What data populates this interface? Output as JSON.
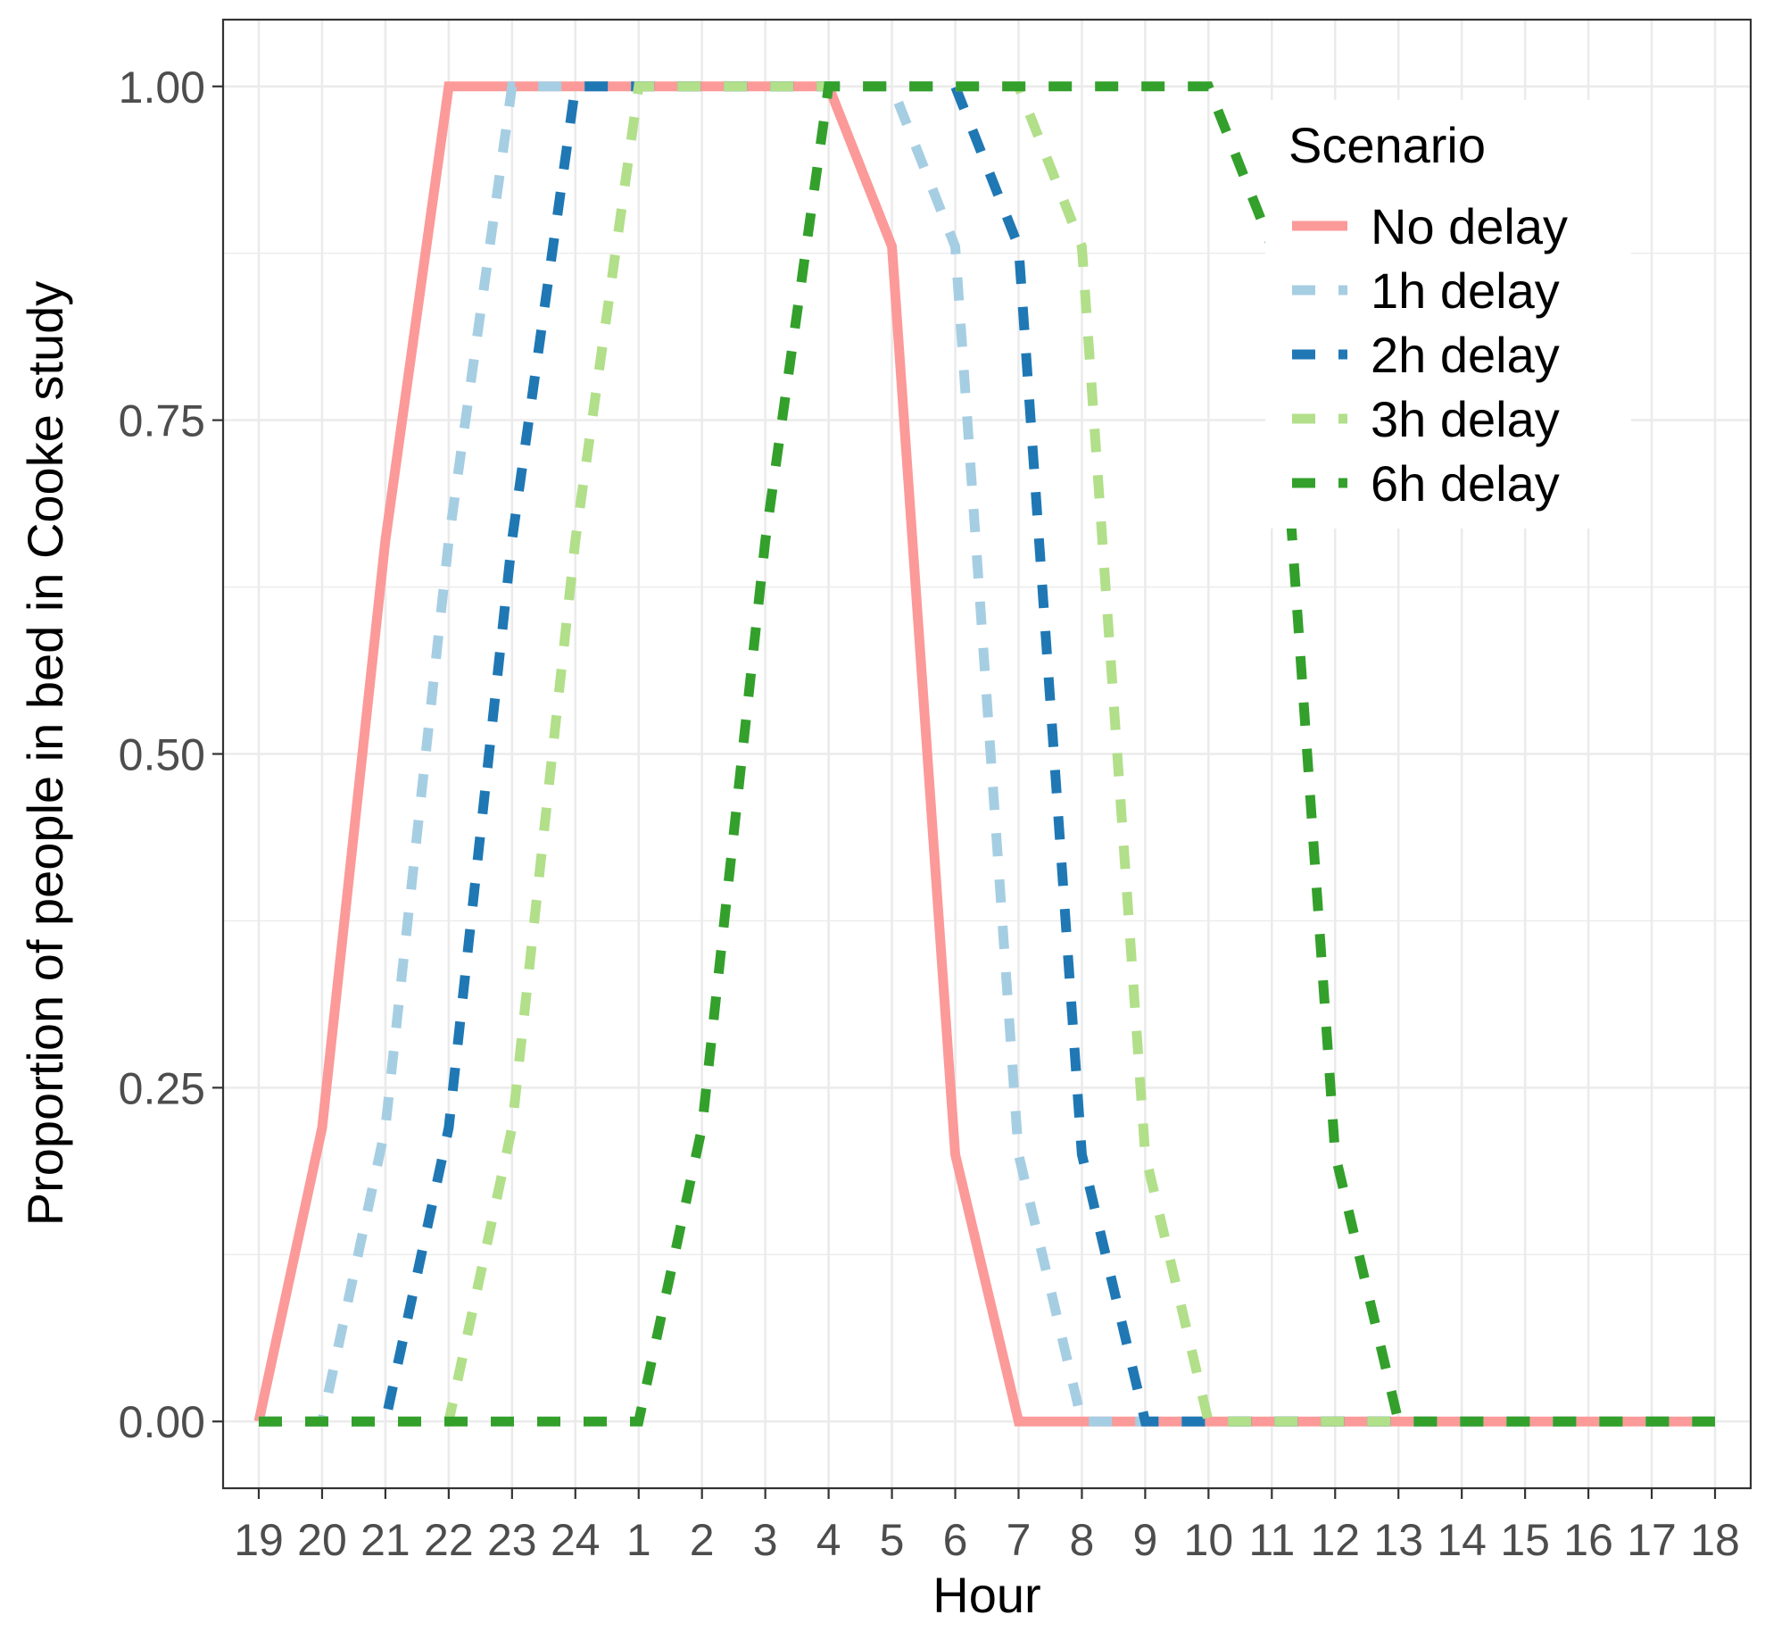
{
  "chart_data": {
    "type": "line",
    "xlabel": "Hour",
    "ylabel": "Proportion of people in bed in Cooke study",
    "categories": [
      "19",
      "20",
      "21",
      "22",
      "23",
      "24",
      "1",
      "2",
      "3",
      "4",
      "5",
      "6",
      "7",
      "8",
      "9",
      "10",
      "11",
      "12",
      "13",
      "14",
      "15",
      "16",
      "17",
      "18"
    ],
    "yticks": [
      "0.00",
      "0.25",
      "0.50",
      "0.75",
      "1.00"
    ],
    "ylim": [
      -0.05,
      1.05
    ],
    "grid": true,
    "legend": {
      "title": "Scenario",
      "placement": "top-right",
      "entries": [
        "No delay",
        "1h delay",
        "2h delay",
        "3h delay",
        "6h delay"
      ]
    },
    "series": [
      {
        "name": "No delay",
        "color": "#fb9a99",
        "dashed": false,
        "values": [
          0,
          0.22,
          0.66,
          1,
          1,
          1,
          1,
          1,
          1,
          1,
          0.88,
          0.2,
          0,
          0,
          0,
          0,
          0,
          0,
          0,
          0,
          0,
          0,
          0,
          0
        ]
      },
      {
        "name": "1h delay",
        "color": "#a6cee3",
        "dashed": true,
        "values": [
          0,
          0,
          0.22,
          0.66,
          1,
          1,
          1,
          1,
          1,
          1,
          1,
          0.88,
          0.2,
          0,
          0,
          0,
          0,
          0,
          0,
          0,
          0,
          0,
          0,
          0
        ]
      },
      {
        "name": "2h delay",
        "color": "#1f78b4",
        "dashed": true,
        "values": [
          0,
          0,
          0,
          0.22,
          0.66,
          1,
          1,
          1,
          1,
          1,
          1,
          1,
          0.88,
          0.2,
          0,
          0,
          0,
          0,
          0,
          0,
          0,
          0,
          0,
          0
        ]
      },
      {
        "name": "3h delay",
        "color": "#b2df8a",
        "dashed": true,
        "values": [
          0,
          0,
          0,
          0,
          0.22,
          0.66,
          1,
          1,
          1,
          1,
          1,
          1,
          1,
          0.88,
          0.2,
          0,
          0,
          0,
          0,
          0,
          0,
          0,
          0,
          0
        ]
      },
      {
        "name": "6h delay",
        "color": "#33a02c",
        "dashed": true,
        "values": [
          0,
          0,
          0,
          0,
          0,
          0,
          0,
          0.22,
          0.66,
          1,
          1,
          1,
          1,
          1,
          1,
          1,
          0.88,
          0.2,
          0,
          0,
          0,
          0,
          0,
          0
        ]
      }
    ]
  }
}
